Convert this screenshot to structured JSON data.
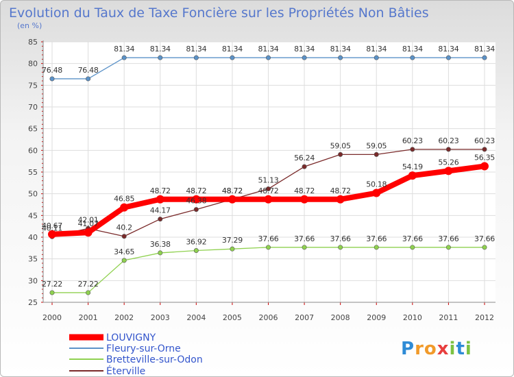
{
  "chart_data": {
    "type": "line",
    "title": "Evolution du Taux de Taxe Foncière sur les Propriétés Non Bâties",
    "subtitle": "(en %)",
    "xlabel": "",
    "ylabel": "",
    "ylim": [
      25,
      85
    ],
    "yticks": [
      "25",
      "30",
      "35",
      "40",
      "45",
      "50",
      "55",
      "60",
      "65",
      "70",
      "75",
      "80",
      "85"
    ],
    "categories": [
      "2000",
      "2001",
      "2002",
      "2003",
      "2004",
      "2005",
      "2006",
      "2007",
      "2008",
      "2009",
      "2010",
      "2011",
      "2012"
    ],
    "grid": true,
    "legend_position": "bottom-left",
    "series": [
      {
        "name": "LOUVIGNY",
        "color": "#ff0000",
        "values": [
          40.67,
          41.07,
          46.85,
          48.72,
          48.72,
          48.72,
          48.72,
          48.72,
          48.72,
          50.18,
          54.19,
          55.26,
          56.35
        ],
        "labels": [
          "40.67",
          "41.07",
          "46.85",
          "48.72",
          "48.72",
          "48.72",
          "48.72",
          "48.72",
          "48.72",
          "50.18",
          "54.19",
          "55.26",
          "56.35"
        ]
      },
      {
        "name": "Fleury-sur-Orne",
        "color": "#5b92c8",
        "values": [
          76.48,
          76.48,
          81.34,
          81.34,
          81.34,
          81.34,
          81.34,
          81.34,
          81.34,
          81.34,
          81.34,
          81.34,
          81.34
        ],
        "labels": [
          "76.48",
          "76.48",
          "81.34",
          "81.34",
          "81.34",
          "81.34",
          "81.34",
          "81.34",
          "81.34",
          "81.34",
          "81.34",
          "81.34",
          "81.34"
        ]
      },
      {
        "name": "Bretteville-sur-Odon",
        "color": "#8fd14f",
        "values": [
          27.22,
          27.22,
          34.65,
          36.38,
          36.92,
          37.29,
          37.66,
          37.66,
          37.66,
          37.66,
          37.66,
          37.66,
          37.66
        ],
        "labels": [
          "27.22",
          "27.22",
          "34.65",
          "36.38",
          "36.92",
          "37.29",
          "37.66",
          "37.66",
          "37.66",
          "37.66",
          "37.66",
          "37.66",
          "37.66"
        ]
      },
      {
        "name": "Éterville",
        "color": "#7a2a2a",
        "values": [
          40.11,
          42.01,
          40.2,
          44.17,
          46.38,
          48.72,
          51.13,
          56.24,
          59.05,
          59.05,
          60.23,
          60.23,
          60.23
        ],
        "labels": [
          "40.11",
          "42.01",
          "40.2",
          "44.17",
          "46.38",
          "48.72",
          "51.13",
          "56.24",
          "59.05",
          "59.05",
          "60.23",
          "60.23",
          "60.23"
        ]
      }
    ]
  },
  "logo": {
    "text": "Proxiti",
    "alt": "Proxiti logo"
  }
}
